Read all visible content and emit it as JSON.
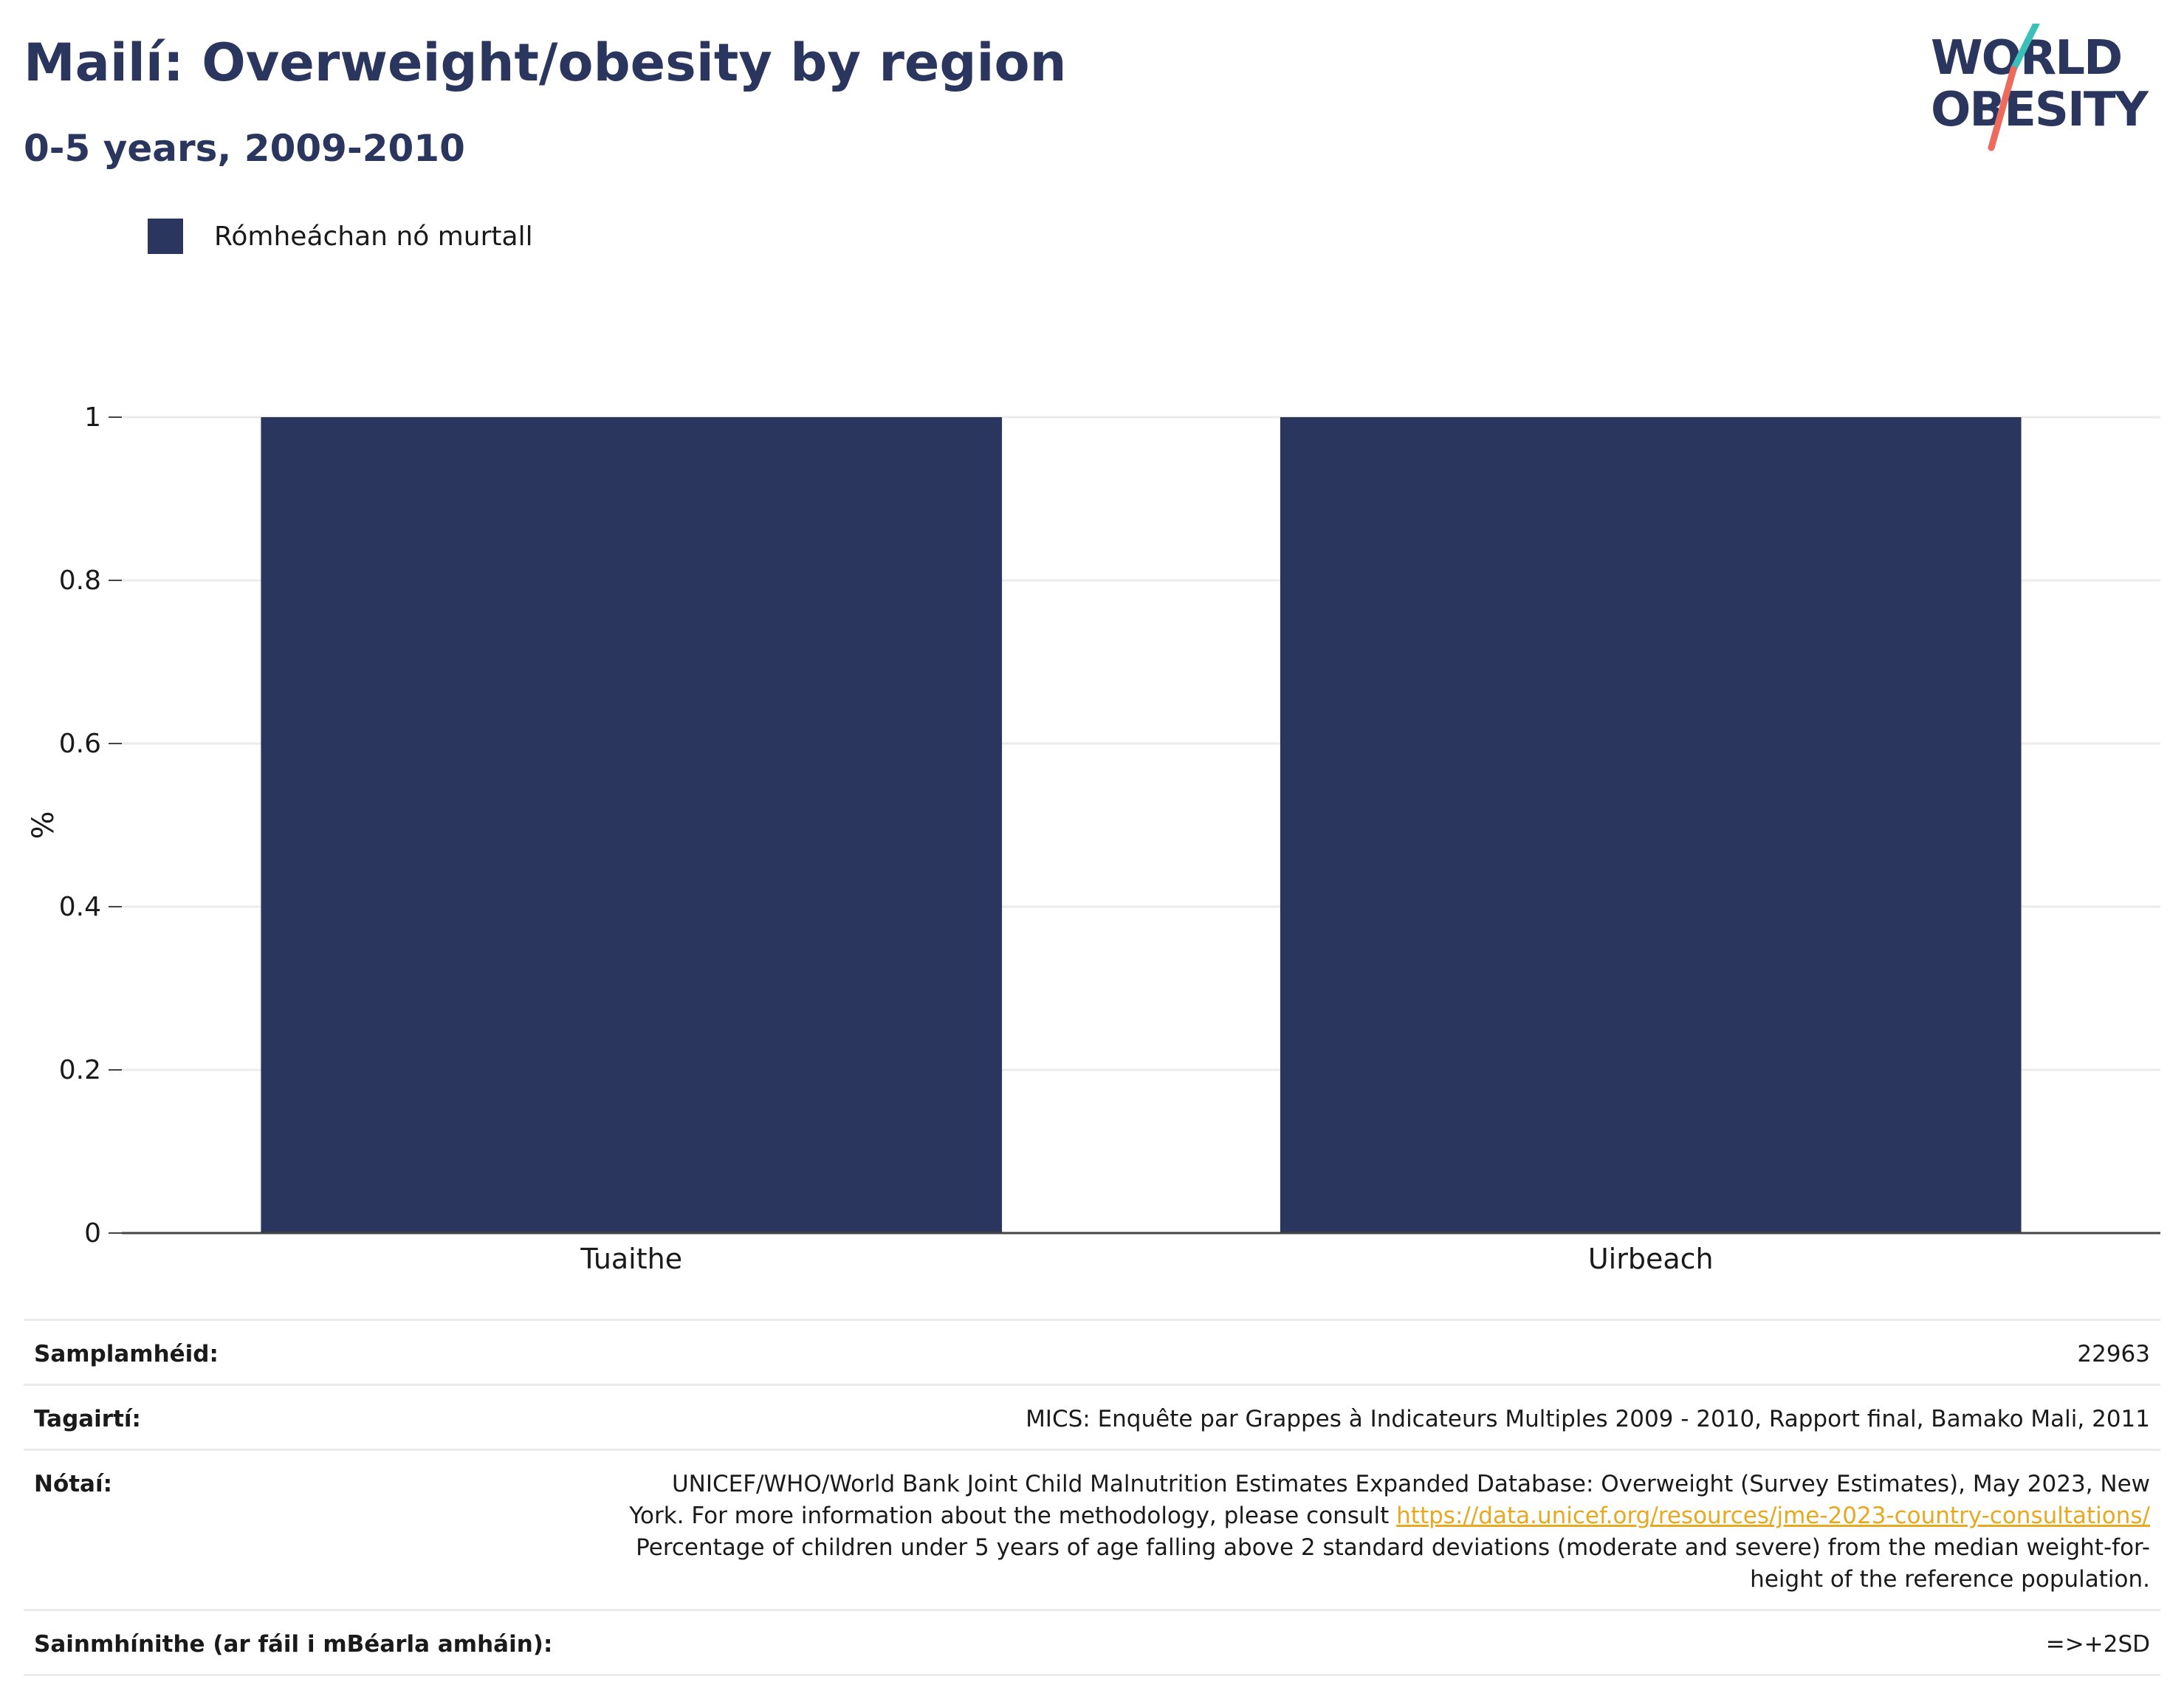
{
  "header": {
    "title": "Mailí: Overweight/obesity by region",
    "subtitle": "0-5 years, 2009-2010"
  },
  "logo": {
    "line1": "WORLD",
    "line2": "OBESITY",
    "accent_colors": [
      "#3bbfb9",
      "#ec6b5d"
    ]
  },
  "legend": {
    "label": "Rómheáchan nó murtall",
    "color": "#2b365f"
  },
  "chart_data": {
    "type": "bar",
    "categories": [
      "Tuaithe",
      "Uirbeach"
    ],
    "series": [
      {
        "name": "Rómheáchan nó murtall",
        "values": [
          1,
          1
        ]
      }
    ],
    "ylabel": "%",
    "xlabel": "",
    "ylim": [
      0,
      1
    ],
    "yticks": [
      "0",
      "0.2",
      "0.4",
      "0.6",
      "0.8",
      "1"
    ],
    "grid": true,
    "bar_color": "#2b365f"
  },
  "info": {
    "rows": [
      {
        "key": "Samplamhéid:",
        "value": "22963"
      },
      {
        "key": "Tagairtí:",
        "value": "MICS: Enquête par Grappes à Indicateurs Multiples 2009 - 2010, Rapport final, Bamako Mali, 2011"
      },
      {
        "key": "Nótaí:",
        "value_before": "UNICEF/WHO/World Bank Joint Child Malnutrition Estimates Expanded Database: Overweight (Survey Estimates), May 2023, New York. For more information about the methodology, please consult ",
        "link": "https://data.unicef.org/resources/jme-2023-country-consultations/",
        "value_after": " Percentage of children under 5 years of age falling above 2 standard deviations (moderate and severe) from the median weight-for-height of the reference population."
      },
      {
        "key": "Sainmhínithe (ar fáil i mBéarla amháin):",
        "value": "=>+2SD"
      }
    ]
  }
}
